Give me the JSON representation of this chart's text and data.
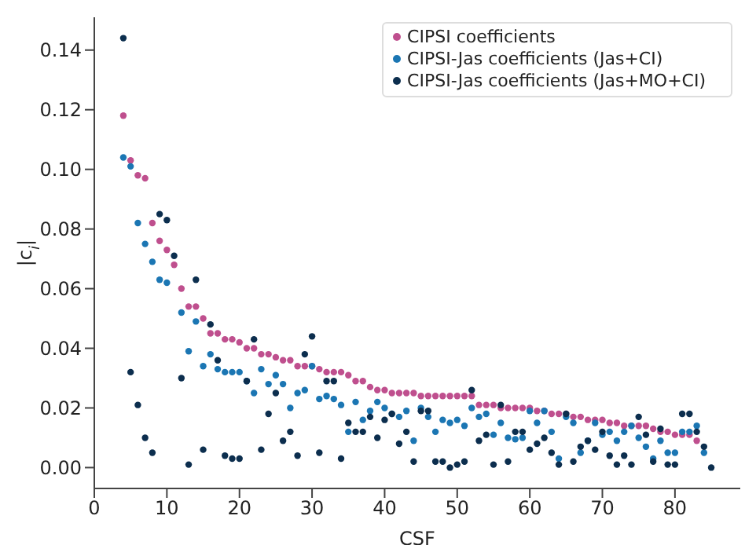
{
  "chart_data": {
    "type": "scatter",
    "xlabel": "CSF",
    "ylabel": "|c$_{i}$|",
    "xlim": [
      0,
      89
    ],
    "ylim": [
      -0.007,
      0.151
    ],
    "xticks": [
      0,
      10,
      20,
      30,
      40,
      50,
      60,
      70,
      80
    ],
    "yticks": [
      {
        "value": 0,
        "label": "0.00"
      },
      {
        "value": 0.02,
        "label": "0.02"
      },
      {
        "value": 0.04,
        "label": "0.04"
      },
      {
        "value": 0.06,
        "label": "0.06"
      },
      {
        "value": 0.08,
        "label": "0.08"
      },
      {
        "value": 0.1,
        "label": "0.10"
      },
      {
        "value": 0.12,
        "label": "0.12"
      },
      {
        "value": 0.14,
        "label": "0.14"
      }
    ],
    "legend": "top right",
    "marker": "circle",
    "series": [
      {
        "name": "CIPSI coefficients",
        "color": "#bf4f8e",
        "x": [
          4,
          5,
          6,
          7,
          8,
          9,
          10,
          11,
          12,
          13,
          14,
          15,
          16,
          17,
          18,
          19,
          20,
          21,
          22,
          23,
          24,
          25,
          26,
          27,
          28,
          29,
          30,
          31,
          32,
          33,
          34,
          35,
          36,
          37,
          38,
          39,
          40,
          41,
          42,
          43,
          44,
          45,
          46,
          47,
          48,
          49,
          50,
          51,
          52,
          53,
          54,
          55,
          56,
          57,
          58,
          59,
          60,
          61,
          62,
          63,
          64,
          65,
          66,
          67,
          68,
          69,
          70,
          71,
          72,
          73,
          74,
          75,
          76,
          77,
          78,
          79,
          80,
          81,
          82,
          83
        ],
        "values": [
          0.118,
          0.103,
          0.098,
          0.097,
          0.082,
          0.076,
          0.073,
          0.068,
          0.06,
          0.054,
          0.054,
          0.05,
          0.045,
          0.045,
          0.043,
          0.043,
          0.042,
          0.04,
          0.04,
          0.038,
          0.038,
          0.037,
          0.036,
          0.036,
          0.034,
          0.034,
          0.034,
          0.033,
          0.032,
          0.032,
          0.032,
          0.031,
          0.029,
          0.029,
          0.027,
          0.026,
          0.026,
          0.025,
          0.025,
          0.025,
          0.025,
          0.024,
          0.024,
          0.024,
          0.024,
          0.024,
          0.024,
          0.024,
          0.024,
          0.021,
          0.021,
          0.021,
          0.02,
          0.02,
          0.02,
          0.02,
          0.02,
          0.019,
          0.019,
          0.018,
          0.018,
          0.018,
          0.017,
          0.017,
          0.016,
          0.016,
          0.016,
          0.015,
          0.015,
          0.014,
          0.014,
          0.014,
          0.014,
          0.013,
          0.012,
          0.012,
          0.011,
          0.011,
          0.011,
          0.009
        ]
      },
      {
        "name": "CIPSI-Jas coefficients (Jas+CI)",
        "color": "#1b76b3",
        "x": [
          4,
          5,
          6,
          7,
          8,
          9,
          10,
          12,
          13,
          14,
          15,
          16,
          17,
          18,
          19,
          20,
          21,
          22,
          23,
          24,
          25,
          26,
          27,
          28,
          29,
          30,
          31,
          32,
          33,
          34,
          35,
          36,
          37,
          38,
          39,
          40,
          41,
          42,
          43,
          44,
          45,
          46,
          47,
          48,
          49,
          50,
          51,
          52,
          53,
          54,
          55,
          56,
          57,
          58,
          59,
          60,
          61,
          62,
          63,
          64,
          65,
          66,
          67,
          68,
          69,
          70,
          71,
          72,
          73,
          74,
          75,
          76,
          77,
          78,
          79,
          80,
          81,
          82,
          83,
          84
        ],
        "values": [
          0.104,
          0.101,
          0.082,
          0.075,
          0.069,
          0.063,
          0.062,
          0.052,
          0.039,
          0.049,
          0.034,
          0.038,
          0.033,
          0.032,
          0.032,
          0.032,
          0.029,
          0.025,
          0.033,
          0.028,
          0.031,
          0.028,
          0.02,
          0.025,
          0.026,
          0.034,
          0.023,
          0.024,
          0.023,
          0.021,
          0.012,
          0.022,
          0.016,
          0.019,
          0.022,
          0.02,
          0.018,
          0.017,
          0.019,
          0.009,
          0.02,
          0.017,
          0.012,
          0.016,
          0.015,
          0.016,
          0.014,
          0.02,
          0.017,
          0.018,
          0.011,
          0.015,
          0.01,
          0.0095,
          0.01,
          0.019,
          0.015,
          0.019,
          0.012,
          0.003,
          0.017,
          0.015,
          0.005,
          0.009,
          0.015,
          0.011,
          0.012,
          0.009,
          0.012,
          0.014,
          0.01,
          0.007,
          0.003,
          0.009,
          0.005,
          0.005,
          0.012,
          0.012,
          0.014,
          0.005
        ]
      },
      {
        "name": "CIPSI-Jas coefficients (Jas+MO+CI)",
        "color": "#0c2e4e",
        "x": [
          4,
          5,
          6,
          7,
          8,
          9,
          10,
          11,
          12,
          13,
          14,
          15,
          16,
          17,
          18,
          19,
          20,
          21,
          22,
          23,
          24,
          25,
          26,
          27,
          28,
          29,
          30,
          31,
          32,
          33,
          34,
          35,
          36,
          37,
          38,
          39,
          40,
          41,
          42,
          43,
          44,
          45,
          46,
          47,
          48,
          49,
          50,
          51,
          52,
          53,
          54,
          55,
          56,
          57,
          58,
          59,
          60,
          61,
          62,
          63,
          64,
          65,
          66,
          67,
          68,
          69,
          70,
          71,
          72,
          73,
          74,
          75,
          76,
          77,
          78,
          79,
          80,
          81,
          82,
          83,
          84,
          85
        ],
        "values": [
          0.144,
          0.032,
          0.021,
          0.01,
          0.005,
          0.085,
          0.083,
          0.071,
          0.03,
          0.001,
          0.063,
          0.006,
          0.048,
          0.036,
          0.004,
          0.003,
          0.003,
          0.029,
          0.043,
          0.006,
          0.018,
          0.025,
          0.009,
          0.012,
          0.004,
          0.038,
          0.044,
          0.005,
          0.029,
          0.029,
          0.003,
          0.015,
          0.012,
          0.012,
          0.017,
          0.01,
          0.016,
          0.018,
          0.008,
          0.012,
          0.002,
          0.019,
          0.019,
          0.002,
          0.002,
          0.0,
          0.001,
          0.002,
          0.026,
          0.009,
          0.011,
          0.001,
          0.021,
          0.002,
          0.012,
          0.012,
          0.006,
          0.008,
          0.01,
          0.005,
          0.001,
          0.018,
          0.002,
          0.007,
          0.009,
          0.006,
          0.012,
          0.004,
          0.001,
          0.004,
          0.001,
          0.017,
          0.011,
          0.002,
          0.013,
          0.001,
          0.001,
          0.018,
          0.018,
          0.012,
          0.007,
          0.0
        ]
      }
    ]
  }
}
